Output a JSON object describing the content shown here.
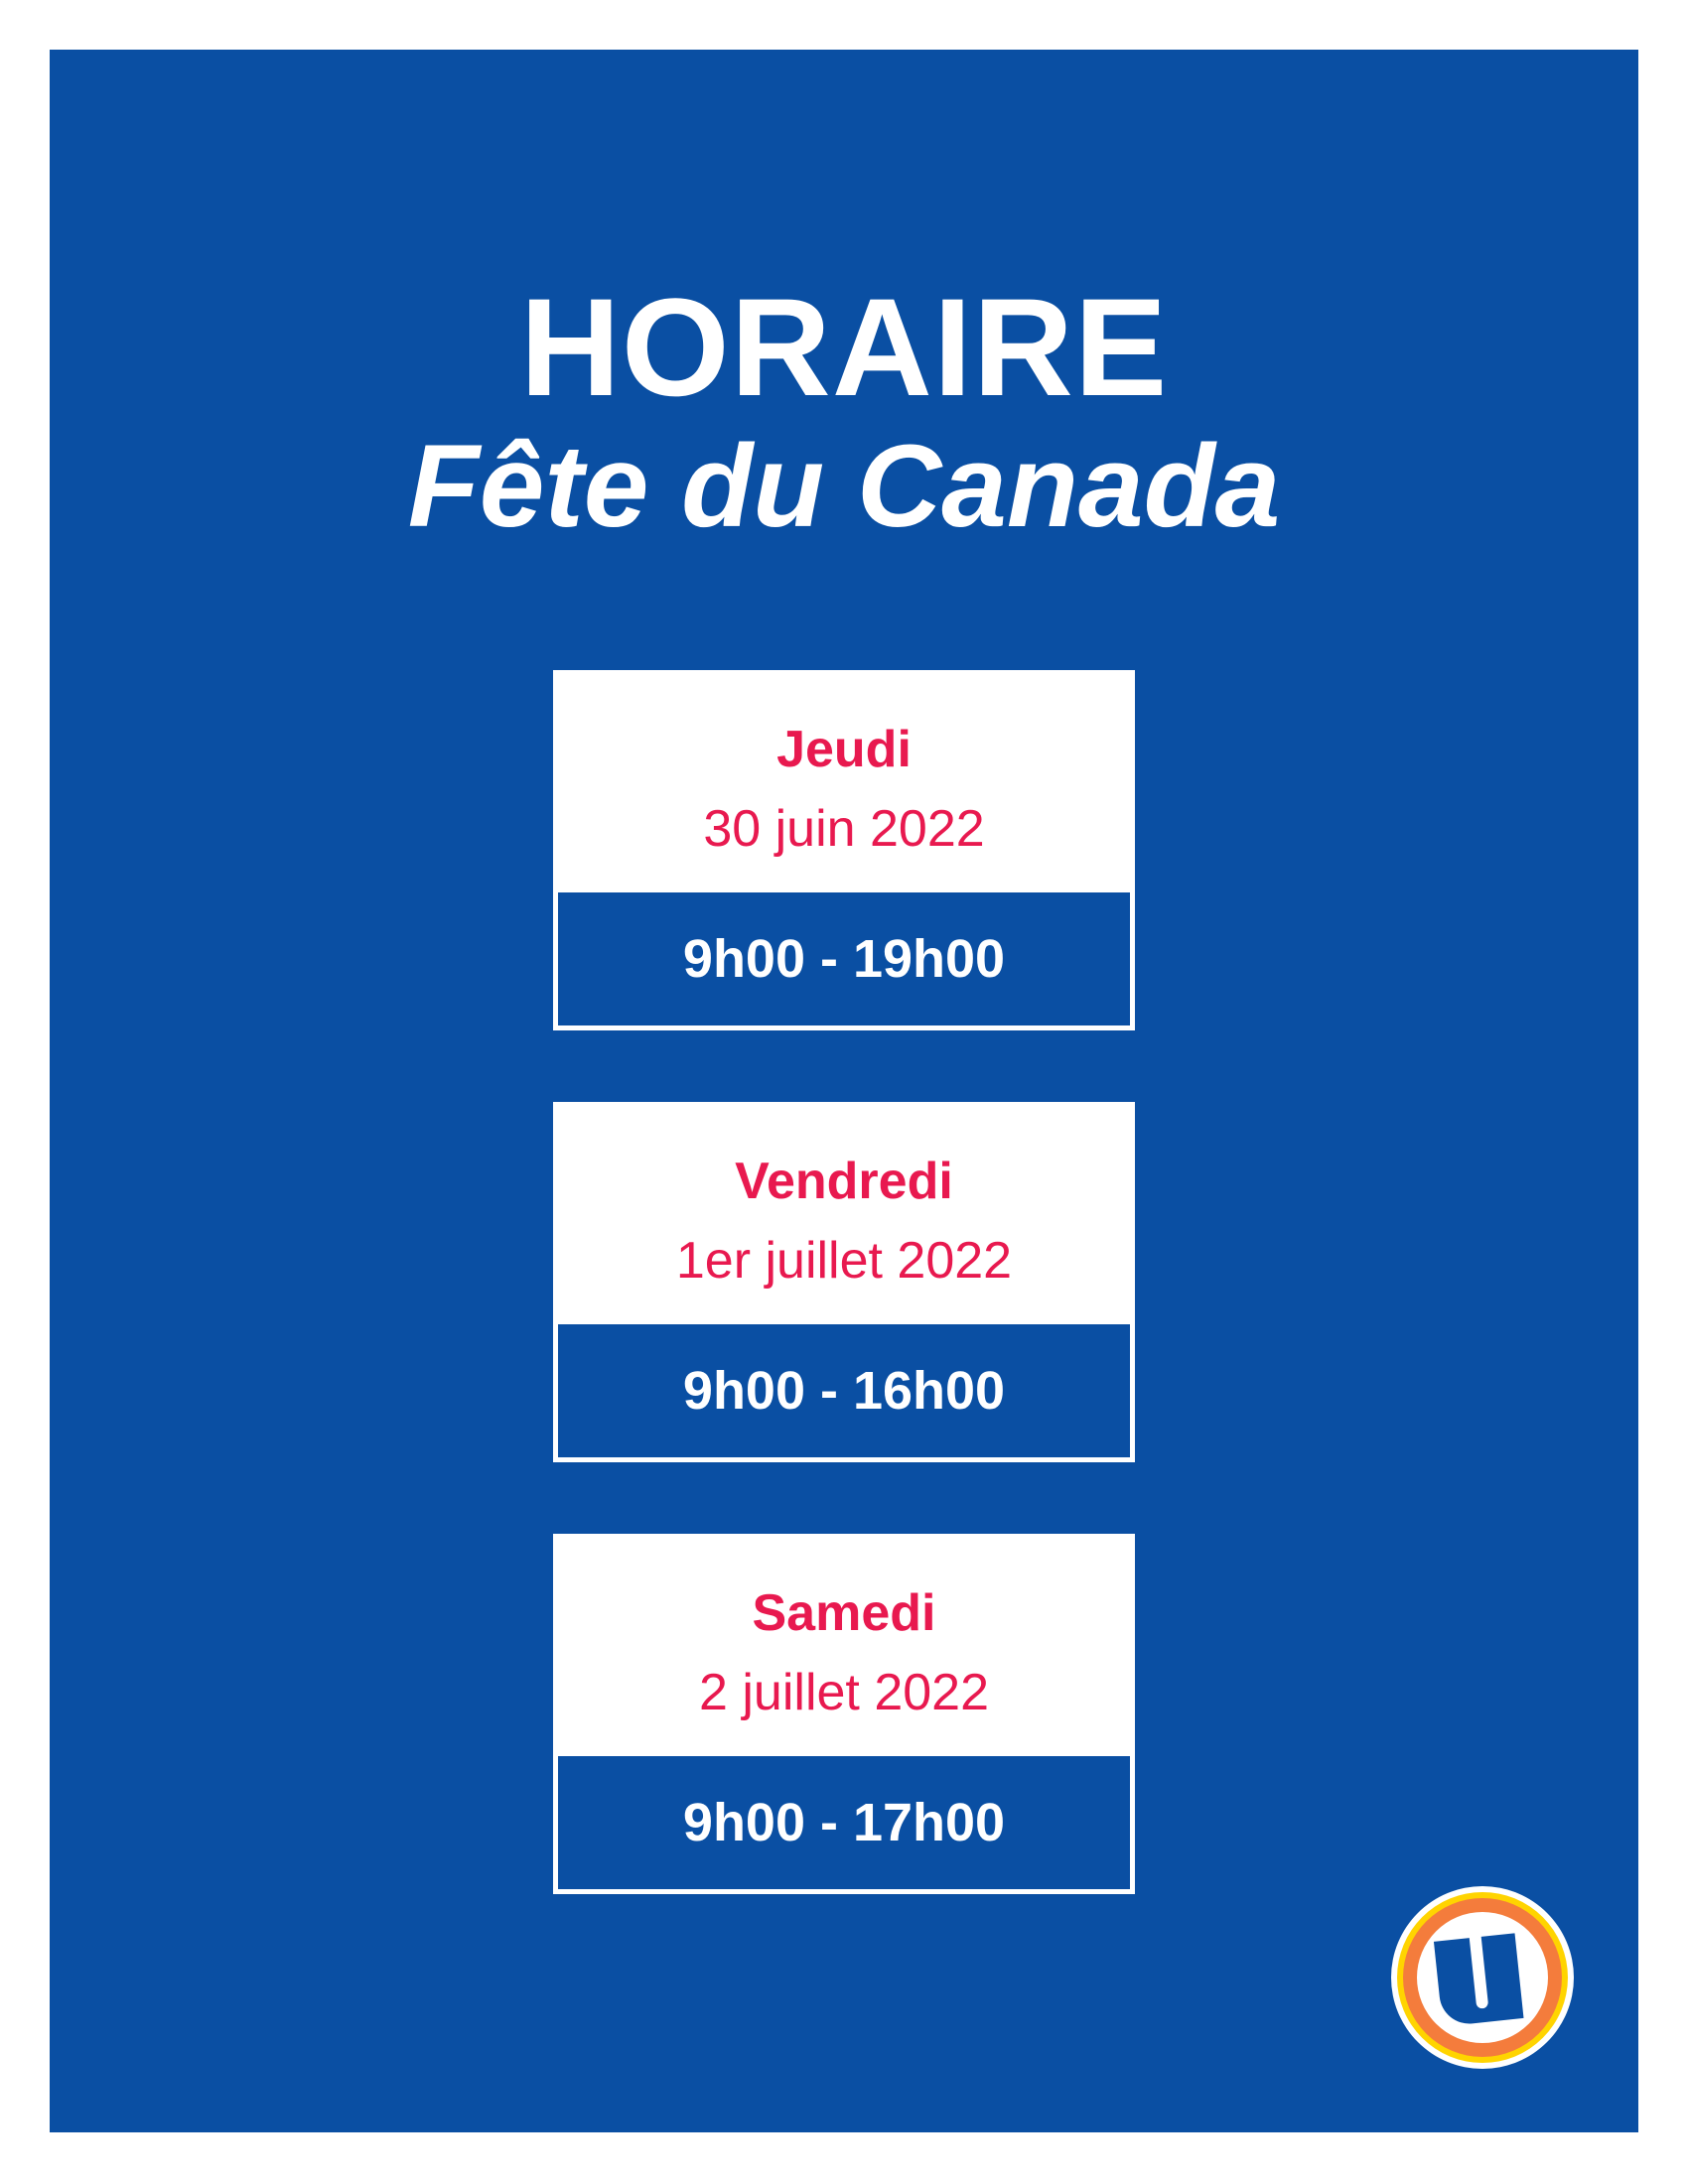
{
  "header": {
    "title": "HORAIRE",
    "subtitle": "Fête du Canada"
  },
  "schedule": [
    {
      "day": "Jeudi",
      "date": "30 juin 2022",
      "hours": "9h00 - 19h00"
    },
    {
      "day": "Vendredi",
      "date": "1er juillet 2022",
      "hours": "9h00 - 16h00"
    },
    {
      "day": "Samedi",
      "date": "2 juillet 2022",
      "hours": "9h00 - 17h00"
    }
  ],
  "logo": {
    "letter": "U"
  },
  "colors": {
    "background": "#0a4fa3",
    "accent": "#e8194f",
    "logo_orange": "#f47c3c",
    "logo_yellow": "#ffd400"
  }
}
